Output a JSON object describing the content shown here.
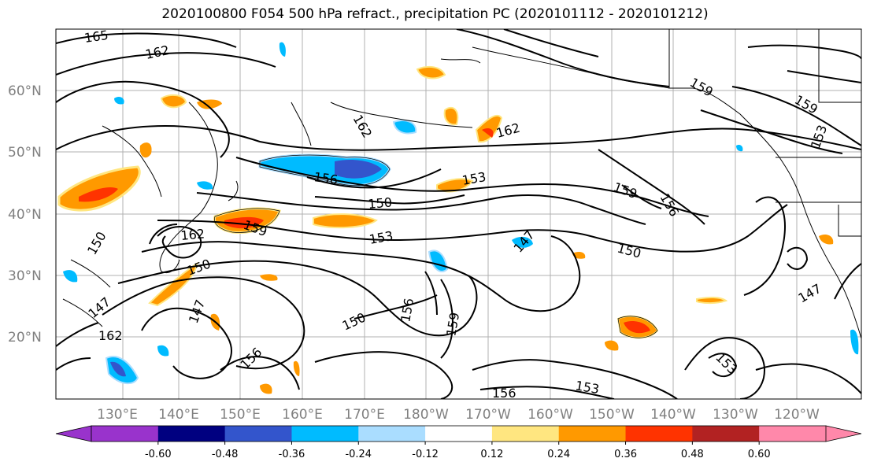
{
  "title": "2020100800 F054 500 hPa refract., precipitation PC (2020101112 - 2020101212)",
  "map": {
    "lat_labels": [
      "60°N",
      "50°N",
      "40°N",
      "30°N",
      "20°N"
    ],
    "lon_labels": [
      "130°E",
      "140°E",
      "150°E",
      "160°E",
      "170°E",
      "180°W",
      "170°W",
      "160°W",
      "150°W",
      "140°W",
      "130°W",
      "120°W"
    ],
    "contour_labels": [
      "165",
      "162",
      "162",
      "162",
      "159",
      "159",
      "159",
      "156",
      "156",
      "153",
      "153",
      "150",
      "150",
      "150",
      "147",
      "147",
      "162",
      "156",
      "159",
      "159",
      "153",
      "156",
      "153",
      "150",
      "147",
      "156",
      "153",
      "150",
      "147",
      "162"
    ]
  },
  "colorbar": {
    "labels": [
      "-0.60",
      "-0.48",
      "-0.36",
      "-0.24",
      "-0.12",
      "0.12",
      "0.24",
      "0.36",
      "0.48",
      "0.60"
    ],
    "colors": [
      "#9933cc",
      "#000080",
      "#3355cc",
      "#00bbff",
      "#aaddff",
      "#ffffff",
      "#ffe680",
      "#ff9900",
      "#ff3300",
      "#b22222",
      "#ff88aa"
    ]
  }
}
